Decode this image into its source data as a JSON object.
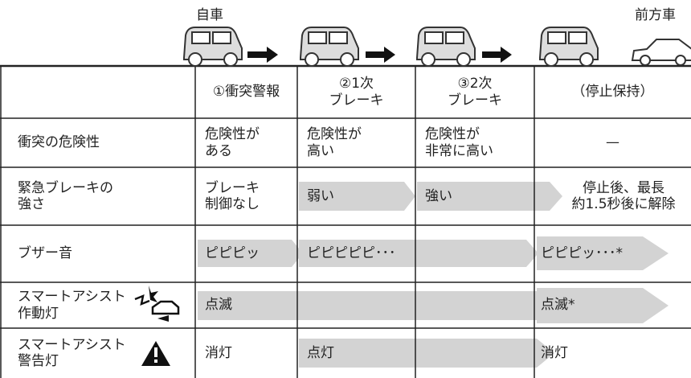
{
  "labels": {
    "own_car": "自車",
    "front_car": "前方車"
  },
  "table": {
    "header": [
      "①衝突警報",
      "②1次\nブレーキ",
      "③2次\nブレーキ",
      "（停止保持）"
    ],
    "rows": [
      {
        "label": "衝突の危険性",
        "cells": [
          "危険性が\nある",
          "危険性が\n高い",
          "危険性が\n非常に高い",
          "—"
        ]
      },
      {
        "label": "緊急ブレーキの\n強さ",
        "cells": [
          "ブレーキ\n制御なし",
          "弱い",
          "強い",
          "停止後、最長\n約1.5秒後に解除"
        ]
      },
      {
        "label": "ブザー音",
        "cells": [
          "ピピピッ",
          "ピピピピピ･･･",
          "ピピピッ･･･*"
        ]
      },
      {
        "label": "スマートアシスト\n作動灯",
        "cells": [
          "点滅",
          "点滅*"
        ]
      },
      {
        "label": "スマートアシスト\n警告灯",
        "cells": [
          "消灯",
          "点灯",
          "消灯"
        ]
      }
    ]
  }
}
